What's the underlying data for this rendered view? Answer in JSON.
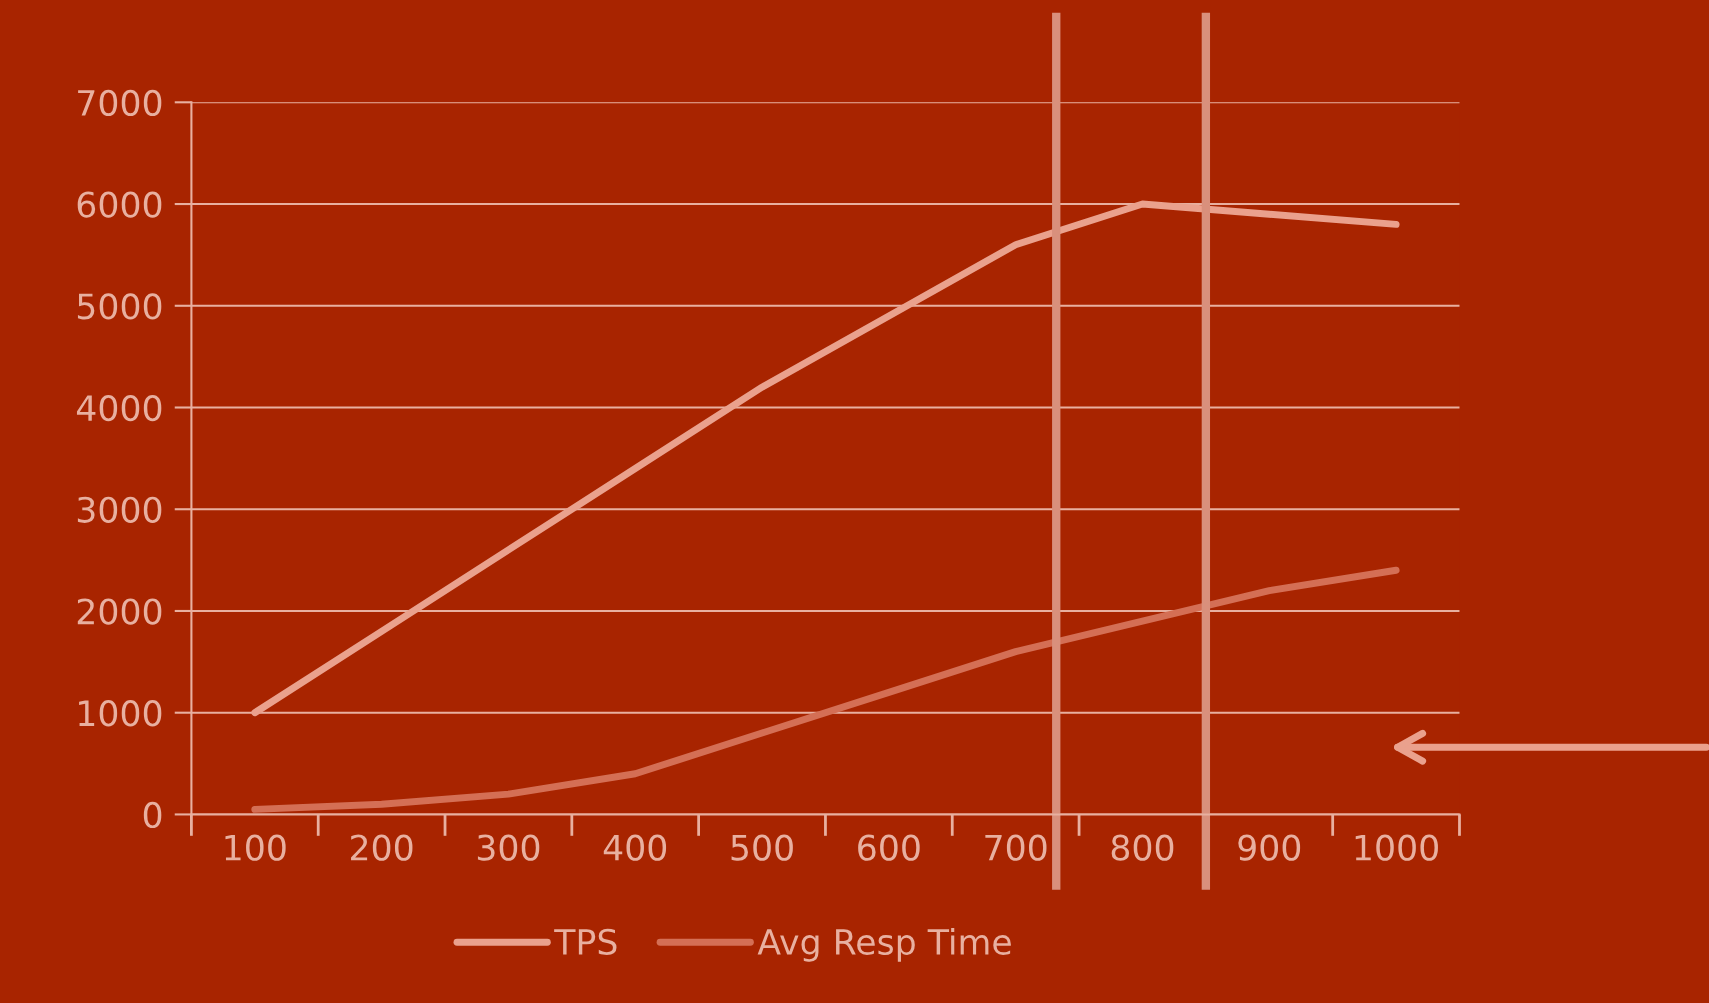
{
  "chart_data": {
    "type": "line",
    "x": [
      100,
      200,
      300,
      400,
      500,
      600,
      700,
      800,
      900,
      1000
    ],
    "series": [
      {
        "name": "TPS",
        "color": "#eaa18d",
        "values": [
          1000,
          1800,
          2600,
          3400,
          4200,
          4900,
          5600,
          6000,
          5900,
          5800
        ]
      },
      {
        "name": "Avg Resp Time",
        "color": "#d46f55",
        "values": [
          50,
          100,
          200,
          400,
          800,
          1200,
          1600,
          1900,
          2200,
          2400
        ]
      }
    ],
    "xlim": [
      50,
      1050
    ],
    "xticks": [
      100,
      200,
      300,
      400,
      500,
      600,
      700,
      800,
      900,
      1000
    ],
    "ylim": [
      0,
      7000
    ],
    "yticks": [
      0,
      1000,
      2000,
      3000,
      4000,
      5000,
      6000,
      7000
    ],
    "ref_lines": [
      {
        "axis": "x",
        "value": 732,
        "color": "#d9907c"
      },
      {
        "axis": "x",
        "value": 850,
        "color": "#d9907c"
      }
    ],
    "grid": "y",
    "legend": "bottom",
    "marker": "none",
    "line_style": "solid"
  }
}
